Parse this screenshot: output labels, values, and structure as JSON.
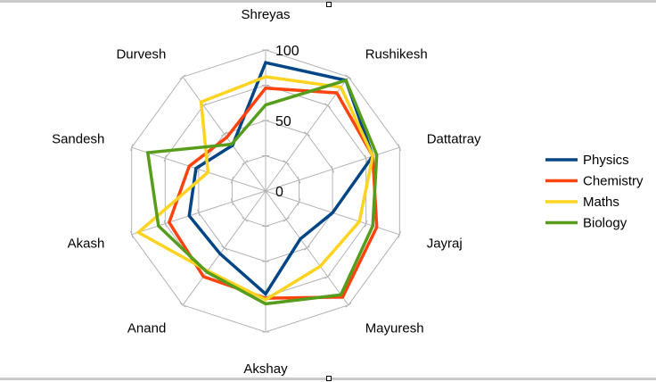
{
  "chart_data": {
    "type": "radar",
    "title": "",
    "categories": [
      "Shreyas",
      "Rushikesh",
      "Dattatray",
      "Jayraj",
      "Mayuresh",
      "Akshay",
      "Anand",
      "Akash",
      "Sandesh",
      "Durvesh"
    ],
    "rmin": 0,
    "rmax": 100,
    "ticks": [
      {
        "value": 0,
        "label": "0"
      },
      {
        "value": 50,
        "label": "50"
      },
      {
        "value": 100,
        "label": "100"
      }
    ],
    "grid": true,
    "legend_position": "right",
    "series": [
      {
        "name": "Physics",
        "color": "#004586",
        "values": [
          91,
          97,
          80,
          50,
          42,
          73,
          55,
          57,
          52,
          40
        ]
      },
      {
        "name": "Chemistry",
        "color": "#ff420e",
        "values": [
          73,
          86,
          80,
          83,
          93,
          76,
          75,
          72,
          57,
          47
        ]
      },
      {
        "name": "Maths",
        "color": "#ffd320",
        "values": [
          81,
          91,
          80,
          70,
          66,
          77,
          70,
          95,
          43,
          78
        ]
      },
      {
        "name": "Biology",
        "color": "#579d1c",
        "values": [
          61,
          97,
          83,
          80,
          91,
          80,
          71,
          80,
          88,
          41
        ]
      }
    ]
  }
}
